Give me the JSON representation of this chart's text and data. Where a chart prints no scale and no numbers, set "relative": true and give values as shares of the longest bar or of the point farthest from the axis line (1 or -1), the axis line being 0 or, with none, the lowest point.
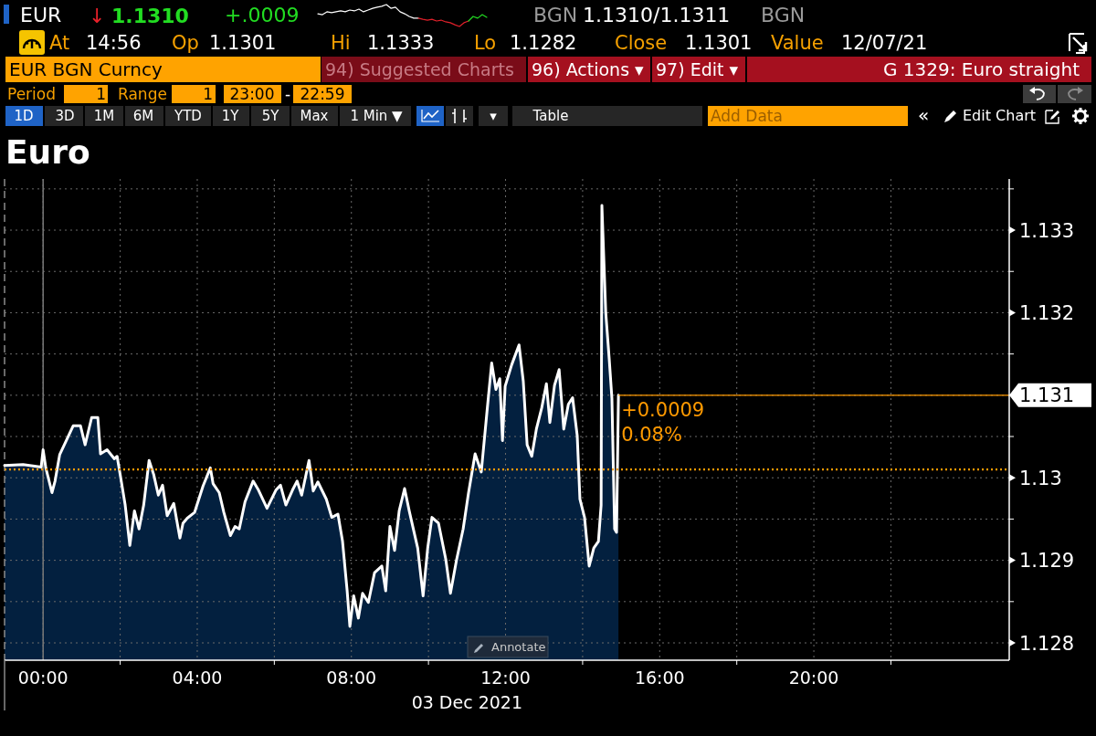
{
  "chart_data": [
    {
      "type": "line",
      "relative": true,
      "categories": [
        null,
        null,
        null,
        null,
        null,
        null,
        null,
        null,
        null,
        null,
        null,
        null,
        null,
        null,
        null,
        null,
        null,
        null,
        null,
        null,
        null,
        null,
        null,
        null,
        null,
        null,
        null,
        null,
        null,
        null,
        null,
        null,
        null,
        null,
        null,
        null,
        null,
        null
      ],
      "series": [
        {
          "color": "#ffffff",
          "values": [
            0.58,
            0.54,
            0.67,
            0.63,
            0.67,
            0.71,
            0.67,
            0.75,
            0.71,
            0.79,
            0.67,
            0.75,
            0.83,
            0.88,
            0.92,
            1.0,
            0.83,
            0.88,
            0.67,
            0.58,
            0.46,
            0.38,
            0.38,
            null,
            null,
            null,
            null,
            null,
            null,
            null,
            null,
            null,
            null,
            null,
            null,
            null,
            null,
            null
          ]
        },
        {
          "color": "#e0202a",
          "values": [
            null,
            null,
            null,
            null,
            null,
            null,
            null,
            null,
            null,
            null,
            null,
            null,
            null,
            null,
            null,
            null,
            null,
            null,
            null,
            null,
            null,
            null,
            0.38,
            0.33,
            0.29,
            0.33,
            0.25,
            0.29,
            0.21,
            0.17,
            0.08,
            0.0,
            0.17,
            0.25,
            null,
            null,
            null,
            null
          ]
        },
        {
          "color": "#22dd22",
          "values": [
            null,
            null,
            null,
            null,
            null,
            null,
            null,
            null,
            null,
            null,
            null,
            null,
            null,
            null,
            null,
            null,
            null,
            null,
            null,
            null,
            null,
            null,
            null,
            null,
            null,
            null,
            null,
            null,
            null,
            null,
            null,
            null,
            null,
            0.25,
            0.46,
            0.38,
            0.54,
            0.42
          ]
        }
      ]
    },
    {
      "type": "area",
      "title": "Euro",
      "xlabel": "03 Dec 2021",
      "color": "#03203f",
      "x": [
        -1.0,
        -0.52,
        -0.05,
        0.0,
        0.07,
        0.23,
        0.31,
        0.43,
        0.55,
        0.78,
        0.97,
        1.09,
        1.26,
        1.42,
        1.49,
        1.66,
        1.85,
        1.92,
        2.01,
        2.13,
        2.25,
        2.37,
        2.49,
        2.61,
        2.75,
        2.87,
        2.99,
        3.1,
        3.22,
        3.39,
        3.55,
        3.63,
        3.74,
        3.93,
        4.15,
        4.34,
        4.41,
        4.57,
        4.69,
        4.86,
        4.98,
        5.09,
        5.24,
        5.45,
        5.59,
        5.81,
        6.04,
        6.16,
        6.3,
        6.47,
        6.59,
        6.71,
        6.9,
        7.01,
        7.13,
        7.35,
        7.49,
        7.65,
        7.77,
        7.89,
        7.96,
        8.06,
        8.18,
        8.29,
        8.44,
        8.6,
        8.79,
        8.89,
        9.0,
        9.12,
        9.24,
        9.38,
        9.5,
        9.72,
        9.86,
        9.98,
        10.09,
        10.26,
        10.45,
        10.57,
        10.73,
        10.9,
        11.04,
        11.21,
        11.37,
        11.52,
        11.64,
        11.75,
        11.85,
        11.92,
        11.99,
        12.16,
        12.35,
        12.46,
        12.56,
        12.68,
        12.8,
        12.94,
        13.06,
        13.15,
        13.27,
        13.39,
        13.51,
        13.63,
        13.74,
        13.86,
        13.93,
        14.05,
        14.17,
        14.29,
        14.41,
        14.48,
        14.5,
        14.6,
        14.69,
        14.76,
        14.83,
        14.88,
        14.93
      ],
      "values": [
        1.13015,
        1.13016,
        1.13013,
        1.13034,
        1.13012,
        1.12982,
        1.12996,
        1.13028,
        1.1304,
        1.13063,
        1.13063,
        1.1304,
        1.13073,
        1.13073,
        1.13029,
        1.13034,
        1.13023,
        1.13026,
        1.13001,
        1.12967,
        1.12918,
        1.1296,
        1.12938,
        1.12967,
        1.13021,
        1.13004,
        1.12979,
        1.12991,
        1.12954,
        1.12969,
        1.12927,
        1.12945,
        1.12951,
        1.12958,
        1.1299,
        1.13012,
        1.12993,
        1.12982,
        1.12958,
        1.1293,
        1.12941,
        1.12938,
        1.12971,
        1.12996,
        1.12985,
        1.12963,
        1.12985,
        1.12991,
        1.12967,
        1.12985,
        1.12996,
        1.12979,
        1.13021,
        1.12984,
        1.12995,
        1.12974,
        1.12952,
        1.12956,
        1.12923,
        1.12863,
        1.1282,
        1.12857,
        1.1283,
        1.1286,
        1.12849,
        1.12885,
        1.12893,
        1.12863,
        1.12941,
        1.12912,
        1.1296,
        1.12987,
        1.1296,
        1.12915,
        1.12857,
        1.12915,
        1.12952,
        1.12945,
        1.12901,
        1.1286,
        1.12901,
        1.12938,
        1.12982,
        1.13029,
        1.13007,
        1.13081,
        1.13139,
        1.13107,
        1.1312,
        1.13045,
        1.13111,
        1.13137,
        1.13161,
        1.13117,
        1.1304,
        1.13026,
        1.13059,
        1.13085,
        1.13114,
        1.13067,
        1.13112,
        1.13131,
        1.13059,
        1.13089,
        1.13097,
        1.13051,
        1.12974,
        1.12952,
        1.12893,
        1.12915,
        1.12923,
        1.12967,
        1.1333,
        1.132,
        1.13144,
        1.13096,
        1.12938,
        1.12934,
        1.131
      ],
      "xlim": [
        -1,
        25.07
      ],
      "xticks": [
        {
          "value": 0,
          "label": "00:00"
        },
        {
          "value": 2,
          "label": null
        },
        {
          "value": 4,
          "label": "04:00"
        },
        {
          "value": 6,
          "label": null
        },
        {
          "value": 8,
          "label": "08:00"
        },
        {
          "value": 10,
          "label": null
        },
        {
          "value": 12,
          "label": "12:00"
        },
        {
          "value": 14,
          "label": null
        },
        {
          "value": 16,
          "label": "16:00"
        },
        {
          "value": 18,
          "label": null
        },
        {
          "value": 20,
          "label": "20:00"
        },
        {
          "value": 22,
          "label": null
        }
      ],
      "ylim": [
        1.12779,
        1.13362
      ],
      "yticks": [
        1.128,
        {
          "value": 1.1285,
          "label": null
        },
        1.129,
        {
          "value": 1.1295,
          "label": null
        },
        1.13,
        {
          "value": 1.1305,
          "label": null
        },
        {
          "value": 1.131,
          "label": null
        },
        {
          "value": 1.1315,
          "label": null
        },
        1.132,
        {
          "value": 1.1325,
          "label": null
        },
        1.133,
        {
          "value": 1.1335,
          "label": null
        }
      ],
      "grid": true,
      "ref_lines": [
        {
          "axis": "x",
          "value": 0,
          "color": "#7a7a7a",
          "line_style": "solid"
        },
        {
          "axis": "y",
          "value": 1.1301,
          "color": "#ff9a00",
          "line_style": "dotted"
        },
        {
          "axis": "y",
          "value": 1.131,
          "label": "1.131",
          "color": "#ff9a00",
          "line_style": "solid"
        }
      ],
      "annotations": [
        "EUR",
        "↓",
        "1.1310",
        "+.0009",
        "BGN",
        "1.1310/1.1311",
        "BGN",
        "At",
        "14:56",
        "Op",
        "1.1301",
        "Hi",
        "1.1333",
        "Lo",
        "1.1282",
        "Close",
        "1.1301",
        "Value",
        "12/07/21",
        "EUR BGN Curncy",
        "94) Suggested Charts",
        "96) Actions ▾",
        "97) Edit ▾",
        "G 1329: Euro straight",
        "Period",
        "1",
        "Range",
        "1",
        "23:00",
        "-",
        "22:59",
        "1D",
        "3D",
        "1M",
        "6M",
        "YTD",
        "1Y",
        "5Y",
        "Max",
        "1 Min ▼",
        "▾",
        "Table",
        "Add Data",
        "«",
        "Edit Chart",
        "Annotate",
        {
          "text": "+0.0009",
          "x": 14.93,
          "y": 1.131
        },
        {
          "text": "0.08%",
          "x": 14.93,
          "y": 1.131
        }
      ]
    }
  ]
}
